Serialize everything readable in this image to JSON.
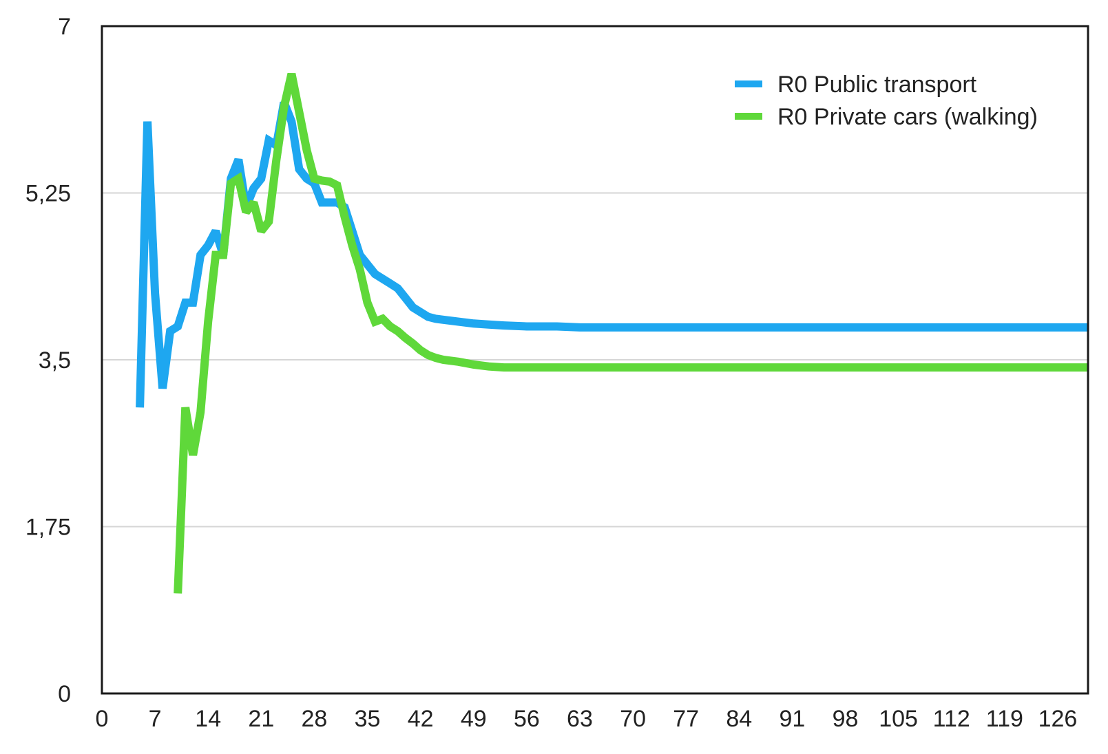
{
  "chart_data": {
    "type": "line",
    "title": "",
    "xlabel": "",
    "ylabel": "",
    "xlim": [
      0,
      130
    ],
    "ylim": [
      0,
      7
    ],
    "x_ticks": [
      "0",
      "7",
      "14",
      "21",
      "28",
      "35",
      "42",
      "49",
      "56",
      "63",
      "70",
      "77",
      "84",
      "91",
      "98",
      "105",
      "112",
      "119",
      "126"
    ],
    "x_tick_values": [
      0,
      7,
      14,
      21,
      28,
      35,
      42,
      49,
      56,
      63,
      70,
      77,
      84,
      91,
      98,
      105,
      112,
      119,
      126
    ],
    "y_ticks": [
      "0",
      "1,75",
      "3,5",
      "5,25",
      "7"
    ],
    "y_tick_values": [
      0,
      1.75,
      3.5,
      5.25,
      7
    ],
    "grid": "horizontal",
    "legend_position": "top-right",
    "series": [
      {
        "name": "R0 Public transport",
        "color": "#1ea7f0",
        "points": [
          [
            5,
            3.0
          ],
          [
            6,
            6.0
          ],
          [
            7,
            4.2
          ],
          [
            8,
            3.2
          ],
          [
            9,
            3.8
          ],
          [
            10,
            3.85
          ],
          [
            11,
            4.1
          ],
          [
            12,
            4.1
          ],
          [
            13,
            4.6
          ],
          [
            14,
            4.7
          ],
          [
            15,
            4.85
          ],
          [
            16,
            4.6
          ],
          [
            17,
            5.4
          ],
          [
            18,
            5.6
          ],
          [
            19,
            5.1
          ],
          [
            20,
            5.3
          ],
          [
            21,
            5.4
          ],
          [
            22,
            5.8
          ],
          [
            23,
            5.75
          ],
          [
            24,
            6.2
          ],
          [
            25,
            6.0
          ],
          [
            26,
            5.5
          ],
          [
            27,
            5.4
          ],
          [
            28,
            5.35
          ],
          [
            29,
            5.15
          ],
          [
            30,
            5.15
          ],
          [
            31,
            5.15
          ],
          [
            32,
            5.1
          ],
          [
            33,
            4.85
          ],
          [
            34,
            4.6
          ],
          [
            35,
            4.5
          ],
          [
            36,
            4.4
          ],
          [
            37,
            4.35
          ],
          [
            38,
            4.3
          ],
          [
            39,
            4.25
          ],
          [
            40,
            4.15
          ],
          [
            41,
            4.05
          ],
          [
            42,
            4.0
          ],
          [
            43,
            3.95
          ],
          [
            44,
            3.93
          ],
          [
            45,
            3.92
          ],
          [
            47,
            3.9
          ],
          [
            49,
            3.88
          ],
          [
            51,
            3.87
          ],
          [
            53,
            3.86
          ],
          [
            56,
            3.85
          ],
          [
            60,
            3.85
          ],
          [
            63,
            3.84
          ],
          [
            70,
            3.84
          ],
          [
            84,
            3.84
          ],
          [
            100,
            3.84
          ],
          [
            115,
            3.84
          ],
          [
            130,
            3.84
          ]
        ]
      },
      {
        "name": "R0 Private cars (walking)",
        "color": "#5fd83a",
        "points": [
          [
            10,
            1.05
          ],
          [
            11,
            3.0
          ],
          [
            12,
            2.5
          ],
          [
            13,
            2.95
          ],
          [
            14,
            3.9
          ],
          [
            15,
            4.6
          ],
          [
            16,
            4.6
          ],
          [
            17,
            5.35
          ],
          [
            18,
            5.4
          ],
          [
            19,
            5.05
          ],
          [
            20,
            5.15
          ],
          [
            21,
            4.85
          ],
          [
            22,
            4.95
          ],
          [
            23,
            5.6
          ],
          [
            24,
            6.15
          ],
          [
            25,
            6.5
          ],
          [
            26,
            6.1
          ],
          [
            27,
            5.7
          ],
          [
            28,
            5.4
          ],
          [
            29,
            5.38
          ],
          [
            30,
            5.37
          ],
          [
            31,
            5.33
          ],
          [
            32,
            5.0
          ],
          [
            33,
            4.7
          ],
          [
            34,
            4.45
          ],
          [
            35,
            4.1
          ],
          [
            36,
            3.9
          ],
          [
            37,
            3.93
          ],
          [
            38,
            3.85
          ],
          [
            39,
            3.8
          ],
          [
            40,
            3.73
          ],
          [
            41,
            3.67
          ],
          [
            42,
            3.6
          ],
          [
            43,
            3.55
          ],
          [
            44,
            3.52
          ],
          [
            45,
            3.5
          ],
          [
            47,
            3.48
          ],
          [
            49,
            3.45
          ],
          [
            51,
            3.43
          ],
          [
            53,
            3.42
          ],
          [
            56,
            3.42
          ],
          [
            60,
            3.42
          ],
          [
            70,
            3.42
          ],
          [
            84,
            3.42
          ],
          [
            100,
            3.42
          ],
          [
            115,
            3.42
          ],
          [
            130,
            3.42
          ]
        ]
      }
    ]
  }
}
